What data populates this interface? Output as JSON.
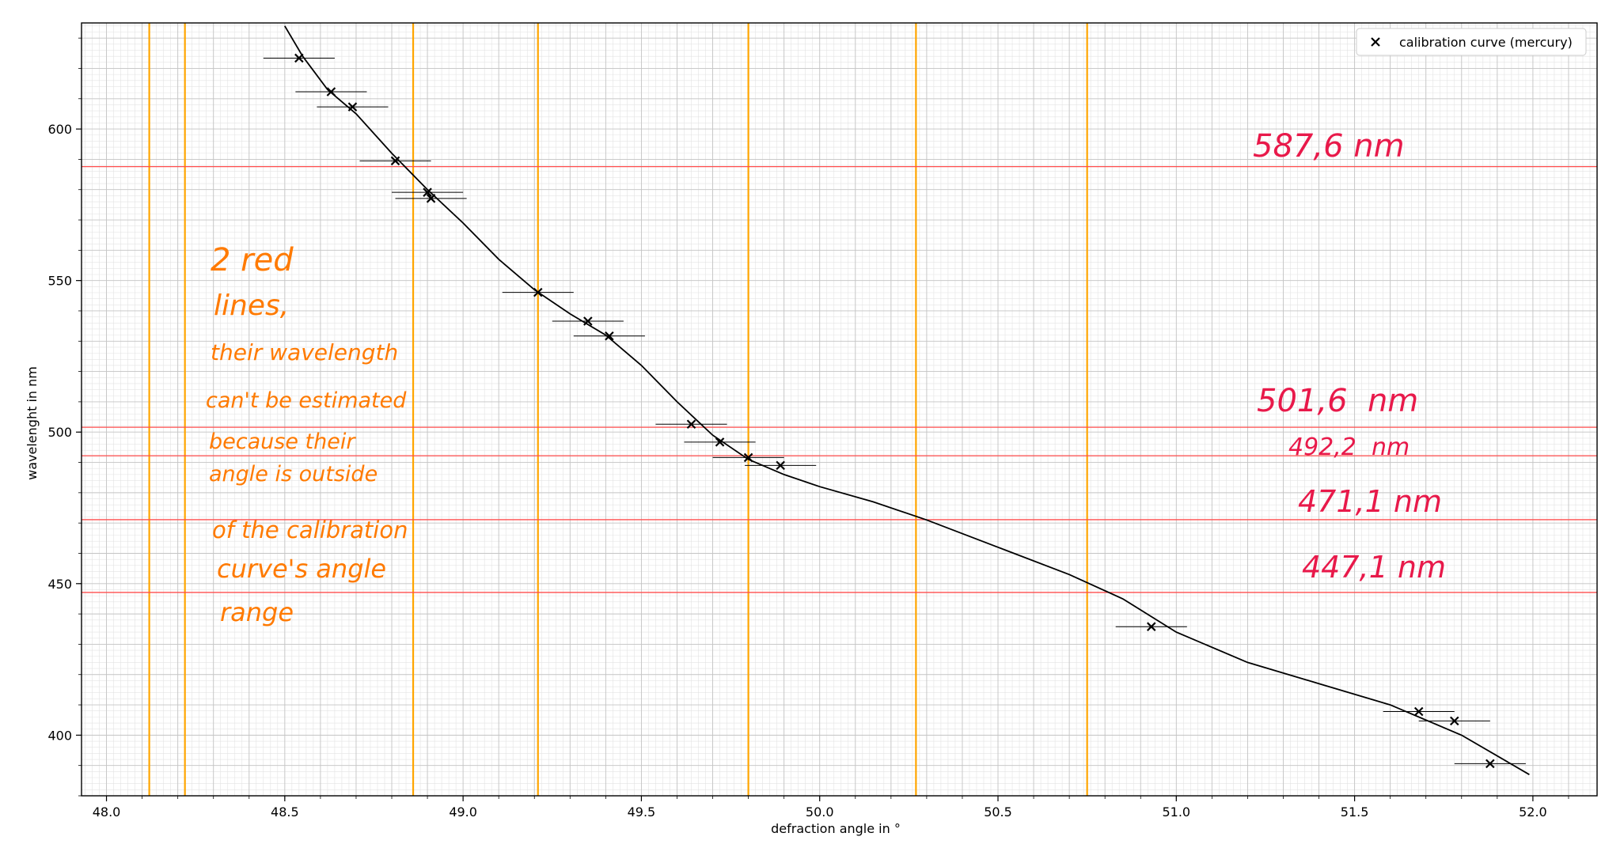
{
  "chart_data": {
    "type": "scatter",
    "xlabel": "defraction angle in °",
    "ylabel": "wavelenght in nm",
    "xlim": [
      47.93,
      52.18
    ],
    "ylim": [
      380,
      635
    ],
    "xticks": [
      48.0,
      48.5,
      49.0,
      49.5,
      50.0,
      50.5,
      51.0,
      51.5,
      52.0
    ],
    "xtick_labels": [
      "48.0",
      "48.5",
      "49.0",
      "49.5",
      "50.0",
      "50.5",
      "51.0",
      "51.5",
      "52.0"
    ],
    "yticks": [
      400,
      450,
      500,
      550,
      600
    ],
    "ytick_labels": [
      "400",
      "450",
      "500",
      "550",
      "600"
    ],
    "grid": true,
    "minor_grid": true,
    "legend": {
      "position": "top-right",
      "entries": [
        "calibration curve (mercury)"
      ]
    },
    "series": [
      {
        "name": "calibration curve (mercury)",
        "marker": "x",
        "color": "#000000",
        "x_error": 0.1,
        "points": [
          [
            48.54,
            623.4
          ],
          [
            48.63,
            612.3
          ],
          [
            48.69,
            607.3
          ],
          [
            48.81,
            589.5
          ],
          [
            48.9,
            579.1
          ],
          [
            48.91,
            577.1
          ],
          [
            49.21,
            546.1
          ],
          [
            49.35,
            536.6
          ],
          [
            49.41,
            531.7
          ],
          [
            49.64,
            502.6
          ],
          [
            49.72,
            496.7
          ],
          [
            49.8,
            491.6
          ],
          [
            49.89,
            489.0
          ],
          [
            50.93,
            435.8
          ],
          [
            51.68,
            407.8
          ],
          [
            51.78,
            404.7
          ],
          [
            51.88,
            390.6
          ]
        ]
      }
    ],
    "fit_curve": {
      "color": "#000000",
      "points": [
        [
          48.5,
          634
        ],
        [
          48.55,
          624
        ],
        [
          48.62,
          613
        ],
        [
          48.7,
          605
        ],
        [
          48.8,
          592
        ],
        [
          48.9,
          580
        ],
        [
          49.0,
          569
        ],
        [
          49.1,
          557
        ],
        [
          49.2,
          547
        ],
        [
          49.3,
          539
        ],
        [
          49.4,
          532
        ],
        [
          49.5,
          522
        ],
        [
          49.6,
          510
        ],
        [
          49.7,
          499
        ],
        [
          49.8,
          491
        ],
        [
          49.9,
          486
        ],
        [
          50.0,
          482
        ],
        [
          50.15,
          477
        ],
        [
          50.3,
          471
        ],
        [
          50.5,
          462
        ],
        [
          50.7,
          453
        ],
        [
          50.85,
          445
        ],
        [
          51.0,
          434
        ],
        [
          51.2,
          424
        ],
        [
          51.4,
          417
        ],
        [
          51.6,
          410
        ],
        [
          51.8,
          400
        ],
        [
          51.99,
          387
        ]
      ]
    },
    "vertical_lines": {
      "color": "#ffa500",
      "x": [
        48.12,
        48.22,
        48.86,
        49.21,
        49.8,
        50.27,
        50.75
      ]
    },
    "horizontal_lines": {
      "color": "#ff4d4d",
      "y": [
        587.6,
        501.6,
        492.2,
        471.1,
        447.1
      ]
    },
    "annotations": {
      "red_labels": [
        "587,6 nm",
        "501,6  nm",
        "492,2  nm",
        "471,1 nm",
        "447,1 nm"
      ],
      "orange_note": [
        "2 red",
        "lines,",
        "their wavelength",
        "can't be estimated",
        "because their",
        "angle is outside",
        "of the calibration",
        "curve's angle",
        "range"
      ]
    }
  }
}
